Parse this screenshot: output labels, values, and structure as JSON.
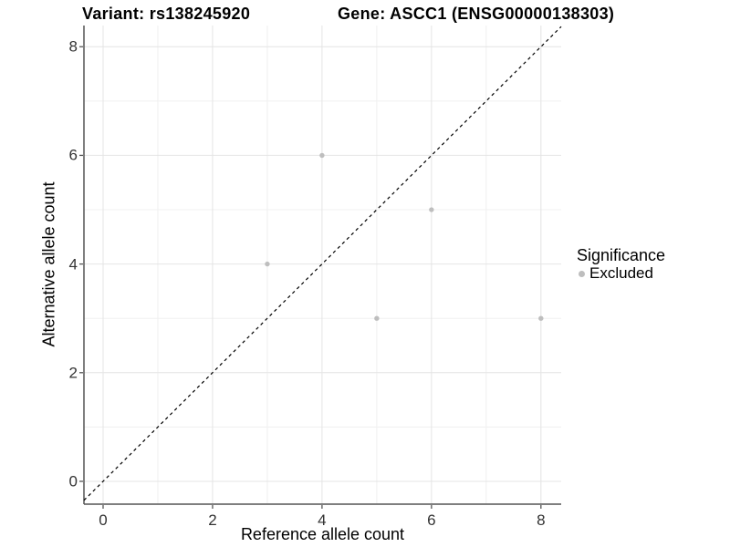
{
  "chart_data": {
    "type": "scatter",
    "title_left": "Variant: rs138245920",
    "title_right": "Gene: ASCC1 (ENSG00000138303)",
    "xlabel": "Reference allele count",
    "ylabel": "Alternative allele count",
    "xlim": [
      -0.35,
      8.37
    ],
    "ylim": [
      -0.42,
      8.39
    ],
    "x_ticks": [
      0,
      2,
      4,
      6,
      8
    ],
    "y_ticks": [
      0,
      2,
      4,
      6,
      8
    ],
    "x_minor_ticks": [
      1,
      3,
      5,
      7
    ],
    "y_minor_ticks": [
      1,
      3,
      5,
      7
    ],
    "grid": true,
    "reference_line": {
      "slope": 1,
      "intercept": 0,
      "style": "dashed",
      "color": "#000000"
    },
    "series": [
      {
        "name": "Excluded",
        "color": "#bebebe",
        "points": [
          [
            4,
            6
          ],
          [
            6,
            5
          ],
          [
            3,
            4
          ],
          [
            5,
            3
          ],
          [
            8,
            3
          ]
        ]
      }
    ],
    "legend": {
      "title": "Significance",
      "position": "right",
      "items": [
        {
          "label": "Excluded",
          "color": "#bebebe"
        }
      ]
    },
    "colors": {
      "background": "#ffffff",
      "grid_major": "#e4e4e4",
      "grid_minor": "#f0f0f0",
      "axis_line": "#555555",
      "tick_text": "#333333",
      "title_text": "#000000",
      "point": "#bebebe"
    }
  }
}
